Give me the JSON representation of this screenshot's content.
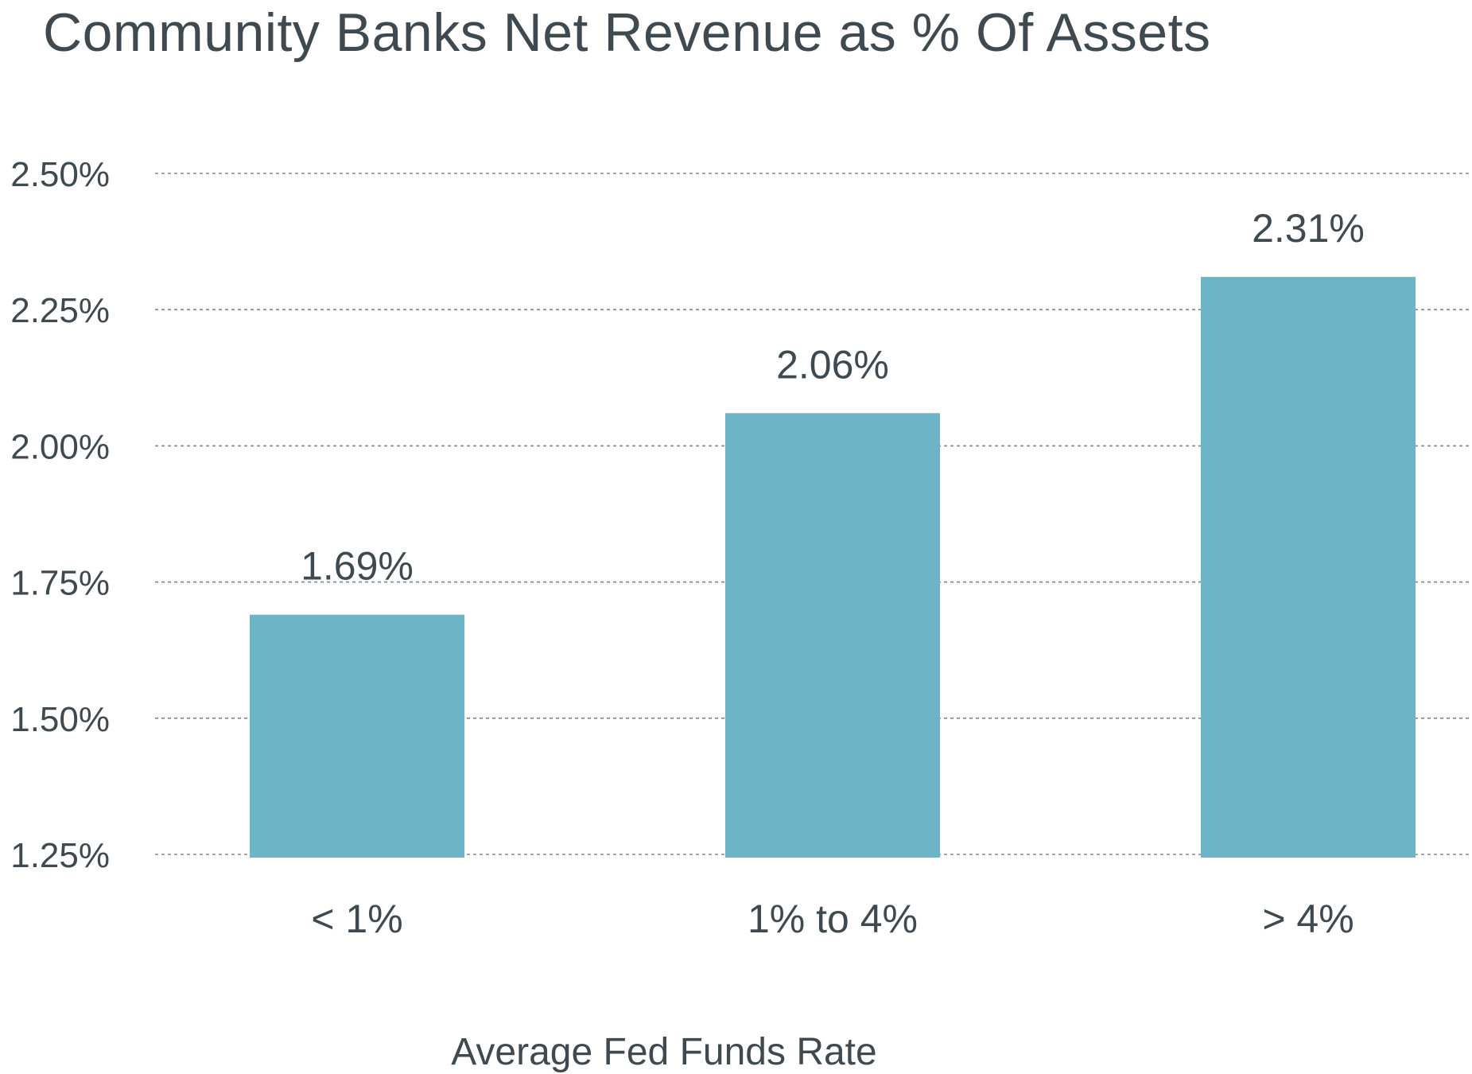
{
  "chart_data": {
    "type": "bar",
    "title": "Community Banks Net Revenue as % Of Assets",
    "xlabel": "Average Fed Funds Rate",
    "ylabel": "",
    "categories": [
      "< 1%",
      "1% to 4%",
      "> 4%"
    ],
    "values": [
      1.69,
      2.06,
      2.31
    ],
    "data_labels": [
      "1.69%",
      "2.06%",
      "2.31%"
    ],
    "ylim": [
      1.25,
      2.5
    ],
    "y_ticks": [
      1.25,
      1.5,
      1.75,
      2.0,
      2.25,
      2.5
    ],
    "y_tick_labels": [
      "1.25%",
      "1.50%",
      "1.75%",
      "2.00%",
      "2.25%",
      "2.50%"
    ],
    "grid": "horizontal dotted",
    "legend": "none"
  },
  "colors": {
    "bar": "#6db4c6",
    "text": "#3f4a50",
    "grid": "#7a8a8c"
  }
}
